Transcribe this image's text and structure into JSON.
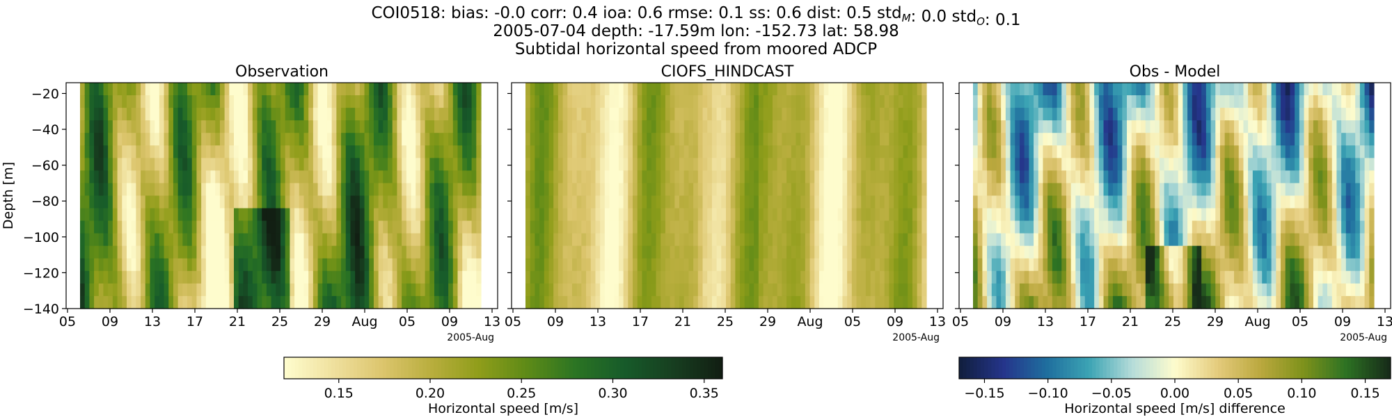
{
  "figure": {
    "title_line1_parts": [
      {
        "text": "COI0518: bias: -0.0  corr: 0.4  ioa: 0.6  rmse: 0.1  ss: 0.6  dist: 0.5  std"
      },
      {
        "sub": "M"
      },
      {
        "text": ": 0.0  std"
      },
      {
        "sub": "O"
      },
      {
        "text": ": 0.1"
      }
    ],
    "title_line2": "2005-07-04 depth: -17.59m lon: -152.73 lat: 58.98",
    "title_line3": "Subtidal horizontal speed from moored ADCP"
  },
  "chart_data": [
    {
      "type": "heatmap",
      "title": "Observation",
      "ylabel": "Depth [m]",
      "xlabel": "",
      "x_ticks": [
        "05",
        "09",
        "13",
        "17",
        "21",
        "25",
        "29",
        "Aug",
        "05",
        "09",
        "13"
      ],
      "x_offset_label": "2005-Aug",
      "x_range": [
        "2005-07-05",
        "2005-08-13"
      ],
      "y_ticks": [
        -20,
        -40,
        -60,
        -80,
        -100,
        -120,
        -140
      ],
      "y_range": [
        -140,
        -14
      ],
      "colormap": "speed",
      "value_range": [
        0.12,
        0.36
      ],
      "grid": false
    },
    {
      "type": "heatmap",
      "title": "CIOFS_HINDCAST",
      "ylabel": "",
      "xlabel": "",
      "x_ticks": [
        "05",
        "09",
        "13",
        "17",
        "21",
        "25",
        "29",
        "Aug",
        "05",
        "09",
        "13"
      ],
      "x_offset_label": "2005-Aug",
      "x_range": [
        "2005-07-05",
        "2005-08-13"
      ],
      "y_range": [
        -140,
        -14
      ],
      "colormap": "speed",
      "value_range": [
        0.12,
        0.36
      ],
      "grid": false
    },
    {
      "type": "heatmap",
      "title": "Obs - Model",
      "ylabel": "",
      "xlabel": "",
      "x_ticks": [
        "05",
        "09",
        "13",
        "17",
        "21",
        "25",
        "29",
        "Aug",
        "05",
        "09",
        "13"
      ],
      "x_offset_label": "2005-Aug",
      "x_range": [
        "2005-07-05",
        "2005-08-13"
      ],
      "y_range": [
        -140,
        -14
      ],
      "colormap": "delta",
      "value_range": [
        -0.17,
        0.17
      ],
      "grid": false
    }
  ],
  "colorbars": [
    {
      "label": "Horizontal speed [m/s]",
      "ticks": [
        "0.15",
        "0.20",
        "0.25",
        "0.30",
        "0.35"
      ],
      "tick_values": [
        0.15,
        0.2,
        0.25,
        0.3,
        0.35
      ],
      "range": [
        0.12,
        0.36
      ],
      "colormap": "speed"
    },
    {
      "label": "Horizontal speed [m/s] difference",
      "ticks": [
        "−0.15",
        "−0.10",
        "−0.05",
        "0.00",
        "0.05",
        "0.10",
        "0.15"
      ],
      "tick_values": [
        -0.15,
        -0.1,
        -0.05,
        0.0,
        0.05,
        0.1,
        0.15
      ],
      "range": [
        -0.17,
        0.17
      ],
      "colormap": "delta"
    }
  ],
  "colormaps": {
    "speed": [
      "#fefccd",
      "#efe09d",
      "#dcc56d",
      "#b9ae3e",
      "#8f9d1a",
      "#5d8a17",
      "#2b7423",
      "#175b2a",
      "#173f20",
      "#121f13"
    ],
    "delta": [
      "#111f40",
      "#25358b",
      "#1f6e9e",
      "#3ca4b4",
      "#b5dcd9",
      "#fefccd",
      "#e4cb7c",
      "#bba83e",
      "#7e921b",
      "#2d7223",
      "#172c19"
    ]
  }
}
